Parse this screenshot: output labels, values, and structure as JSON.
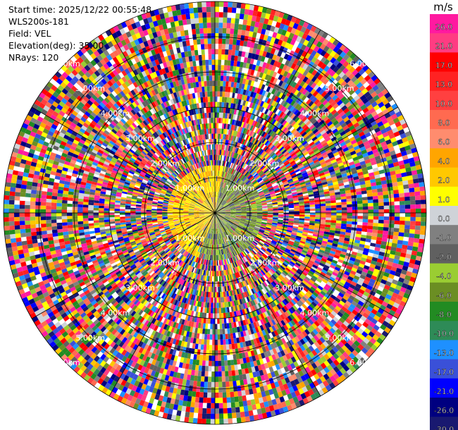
{
  "info": {
    "start_time": "Start time: 2025/12/22 00:55:48",
    "station": "WLS200s-181",
    "field": "Field: VEL",
    "elevation": "Elevation(deg): 35.00",
    "nrays": "NRays: 120"
  },
  "chart_data": {
    "type": "polar-ppi",
    "field": "VEL",
    "nrays": 120,
    "elevation_deg": 35.0,
    "max_range_km": 6.0,
    "range_rings_km": [
      1,
      2,
      3,
      4,
      5,
      6
    ],
    "ring_label_texts": [
      "1.00km",
      "2.00km",
      "3.00km",
      "4.00km",
      "5.00km",
      "6.00km"
    ],
    "spokes_deg": [
      0,
      30,
      60,
      90,
      120,
      150,
      180,
      210,
      240,
      270,
      300,
      330
    ],
    "colorbar": {
      "unit": "m/s",
      "ticks": [
        "26.0",
        "21.0",
        "17.0",
        "13.0",
        "10.0",
        "8.0",
        "6.0",
        "4.0",
        "2.0",
        "1.0",
        "0.0",
        "-1.0",
        "-2.0",
        "-4.0",
        "-6.0",
        "-8.0",
        "-10.0",
        "-13.0",
        "-17.0",
        "-21.0",
        "-26.0",
        "-30.0"
      ],
      "colors": [
        "#ff1aa0",
        "#ff3c82",
        "#ff0000",
        "#ff2222",
        "#ff4040",
        "#ff6a50",
        "#ff8c6e",
        "#ffa500",
        "#ffc800",
        "#ffff00",
        "#cfd3d8",
        "#808080",
        "#606060",
        "#9acd32",
        "#6b8e23",
        "#228b22",
        "#2e8b57",
        "#1e90ff",
        "#3a50d8",
        "#0000ff",
        "#000080",
        "#191970"
      ]
    }
  }
}
